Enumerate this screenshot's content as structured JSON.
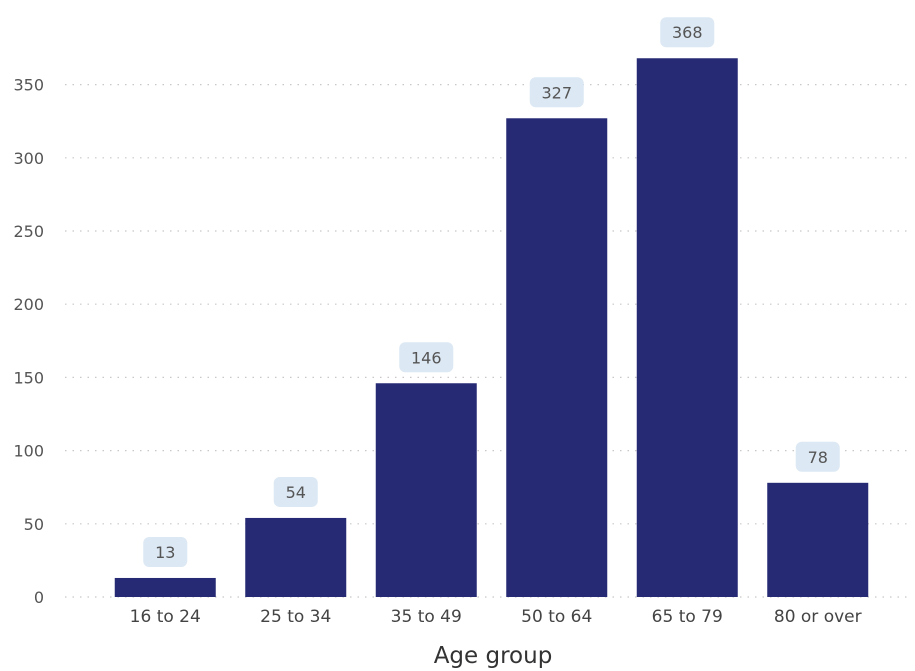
{
  "chart_data": {
    "type": "bar",
    "title": "",
    "xlabel": "Age group",
    "ylabel": "",
    "categories": [
      "16 to 24",
      "25 to 34",
      "35 to 49",
      "50 to 64",
      "65 to 79",
      "80 or over"
    ],
    "values": [
      13,
      54,
      146,
      327,
      368,
      78
    ],
    "data_labels": [
      "13",
      "54",
      "146",
      "327",
      "368",
      "78"
    ],
    "ylim": [
      0,
      380
    ],
    "yticks": [
      0,
      50,
      100,
      150,
      200,
      250,
      300,
      350
    ],
    "ytick_labels": [
      "0",
      "50",
      "100",
      "150",
      "200",
      "250",
      "300",
      "350"
    ],
    "grid": true,
    "legend": "none",
    "colors": {
      "bar": "#262a74",
      "label_bg": "#dce8f3",
      "grid": "#c8c8c8"
    }
  }
}
